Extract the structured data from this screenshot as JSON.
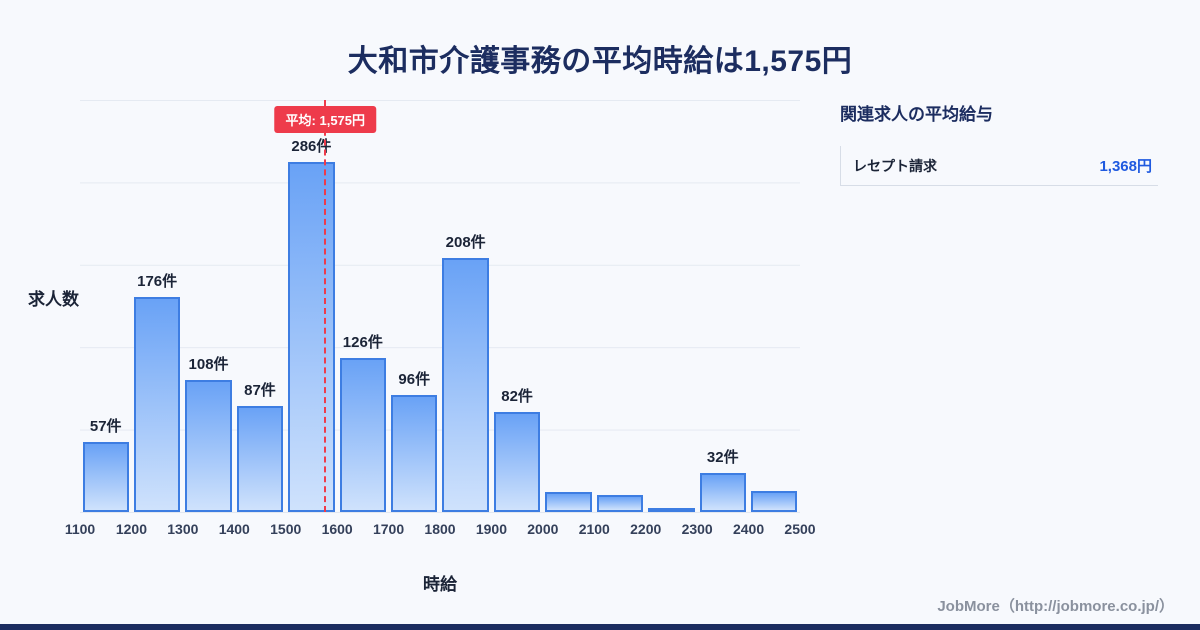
{
  "title": "大和市介護事務の平均時給は1,575円",
  "chart_data": {
    "type": "bar",
    "title": "大和市介護事務の平均時給は1,575円",
    "xlabel": "時給",
    "ylabel": "求人数",
    "x_ticks": [
      "1100",
      "1200",
      "1300",
      "1400",
      "1500",
      "1600",
      "1700",
      "1800",
      "1900",
      "2000",
      "2100",
      "2200",
      "2300",
      "2400",
      "2500"
    ],
    "x_range": [
      1100,
      2500
    ],
    "bin_width": 100,
    "values": [
      57,
      176,
      108,
      87,
      286,
      126,
      96,
      208,
      82,
      16,
      14,
      3,
      32,
      17
    ],
    "labels": [
      "57件",
      "176件",
      "108件",
      "87件",
      "286件",
      "126件",
      "96件",
      "208件",
      "82件",
      "",
      "",
      "",
      "32件",
      ""
    ],
    "ylim": [
      0,
      337
    ],
    "grid": true,
    "legend": "none",
    "average": {
      "value": 1575,
      "label": "平均: 1,575円"
    }
  },
  "side_panel": {
    "heading": "関連求人の平均給与",
    "rows": [
      {
        "label": "レセプト請求",
        "value": "1,368円"
      }
    ]
  },
  "footer": {
    "credit": "JobMore（http://jobmore.co.jp/）"
  },
  "colors": {
    "title_navy": "#1c2d60",
    "bar_top": "#69a2f6",
    "bar_bottom": "#cfe2fc",
    "bar_border": "#3d7de2",
    "average_line": "#ee3b4b",
    "value_blue": "#1f5ae0",
    "background": "#f7f9fd"
  }
}
